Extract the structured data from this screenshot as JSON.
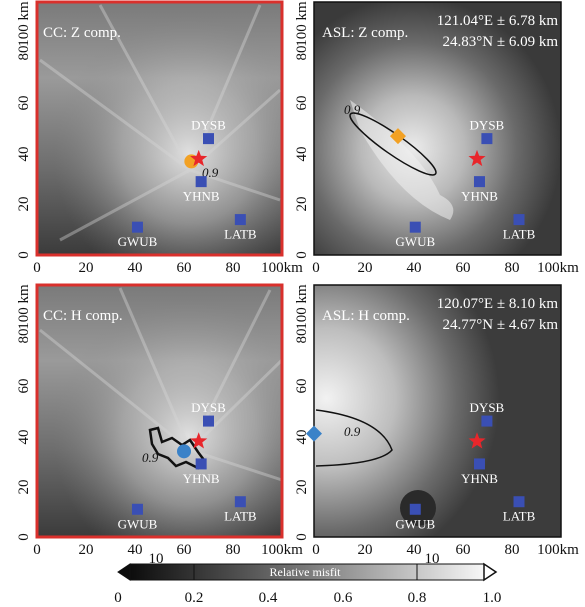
{
  "figure": {
    "panels": [
      {
        "id": "cc-z",
        "title": "CC: Z comp.",
        "contour_label": "0.9",
        "location": null
      },
      {
        "id": "asl-z",
        "title": "ASL: Z comp.",
        "contour_label": "0.9",
        "location": {
          "lon": "121.04°E ± 6.78 km",
          "lat": "24.83°N ± 6.09 km"
        }
      },
      {
        "id": "cc-h",
        "title": "CC: H comp.",
        "contour_label": "0.9",
        "location": null
      },
      {
        "id": "asl-h",
        "title": "ASL: H comp.",
        "contour_label": "0.9",
        "location": {
          "lon": "120.07°E ± 8.10 km",
          "lat": "24.77°N ± 4.67 km"
        }
      }
    ],
    "stations": [
      {
        "name": "DYSB",
        "x_km": 70,
        "y_km": 46
      },
      {
        "name": "YHNB",
        "x_km": 67,
        "y_km": 29
      },
      {
        "name": "GWUB",
        "x_km": 41,
        "y_km": 11
      },
      {
        "name": "LATB",
        "x_km": 83,
        "y_km": 14
      }
    ],
    "x_ticks": [
      "0",
      "20",
      "40",
      "60",
      "80",
      "100km"
    ],
    "y_ticks": [
      "0",
      "20",
      "40",
      "60",
      "80",
      "100 km"
    ],
    "colorbar": {
      "title": "Relative misfit",
      "ticks": [
        "0",
        "0.2",
        "0.4",
        "0.6",
        "0.8",
        "1.0"
      ],
      "overflow_label": "10"
    },
    "colors": {
      "star": "#e8262b",
      "station": "#3a4fb4",
      "cc_frame": "#d9302c",
      "orange_marker": "#f2a124",
      "blue_marker": "#3a82c8"
    }
  }
}
